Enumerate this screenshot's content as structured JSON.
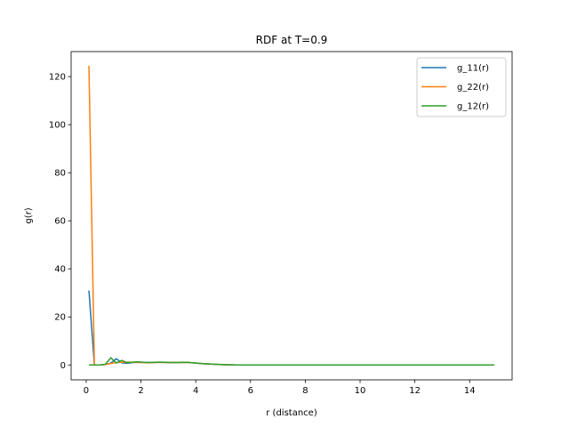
{
  "chart_data": {
    "type": "line",
    "title": "RDF at T=0.9",
    "xlabel": "r (distance)",
    "ylabel": "g(r)",
    "xlim": [
      -0.55,
      15.55
    ],
    "ylim": [
      -6.2,
      130.4
    ],
    "xticks": [
      0,
      2,
      4,
      6,
      8,
      10,
      12,
      14
    ],
    "yticks": [
      0,
      20,
      40,
      60,
      80,
      100,
      120
    ],
    "legend_position": "top-right",
    "grid": false,
    "series": [
      {
        "name": "g_11(r)",
        "color": "#1f77b4",
        "x": [
          0.1,
          0.3,
          0.5,
          0.7,
          0.9,
          1.1,
          1.3,
          1.5,
          1.7,
          1.9,
          2.1,
          2.3,
          2.5,
          2.7,
          2.9,
          3.1,
          3.3,
          3.5,
          3.7,
          3.9,
          4.1,
          4.3,
          4.5,
          4.7,
          4.9,
          5.1,
          5.3,
          5.5,
          5.7,
          5.9,
          6.1,
          6.3,
          6.5,
          6.7,
          6.9,
          7.1,
          7.3,
          7.5,
          7.7,
          7.9,
          8.1,
          8.3,
          8.5,
          8.7,
          8.9,
          9.1,
          9.3,
          9.5,
          9.7,
          9.9,
          10.1,
          10.3,
          10.5,
          10.7,
          10.9,
          11.1,
          11.3,
          11.5,
          11.7,
          11.9,
          12.1,
          12.3,
          12.5,
          12.7,
          12.9,
          13.1,
          13.3,
          13.5,
          13.7,
          13.9,
          14.1,
          14.3,
          14.5,
          14.7,
          14.9
        ],
        "values": [
          31.0,
          0.0,
          0.0,
          0.2,
          0.8,
          2.6,
          0.9,
          0.7,
          1.0,
          1.1,
          1.0,
          1.0,
          1.0,
          1.1,
          1.0,
          1.0,
          1.0,
          1.0,
          1.0,
          0.9,
          0.7,
          0.5,
          0.4,
          0.3,
          0.2,
          0.1,
          0.05,
          0.0,
          0.0,
          0.0,
          0.0,
          0.0,
          0.0,
          0.0,
          0.0,
          0.0,
          0.0,
          0.0,
          0.0,
          0.0,
          0.0,
          0.0,
          0.0,
          0.0,
          0.0,
          0.0,
          0.0,
          0.0,
          0.0,
          0.0,
          0.0,
          0.0,
          0.0,
          0.0,
          0.0,
          0.0,
          0.0,
          0.0,
          0.0,
          0.0,
          0.0,
          0.0,
          0.0,
          0.0,
          0.0,
          0.0,
          0.0,
          0.0,
          0.0,
          0.0,
          0.0,
          0.0,
          0.0,
          0.0,
          0.0
        ]
      },
      {
        "name": "g_22(r)",
        "color": "#ff7f0e",
        "x": [
          0.1,
          0.3,
          0.5,
          0.7,
          0.9,
          1.1,
          1.3,
          1.5,
          1.7,
          1.9,
          2.1,
          2.3,
          2.5,
          2.7,
          2.9,
          3.1,
          3.3,
          3.5,
          3.7,
          3.9,
          4.1,
          4.3,
          4.5,
          4.7,
          4.9,
          5.1,
          5.3,
          5.5,
          5.7,
          5.9,
          6.1,
          6.3,
          6.5,
          6.7,
          6.9,
          7.1,
          7.3,
          7.5,
          7.7,
          7.9,
          8.1,
          8.3,
          8.5,
          8.7,
          8.9,
          9.1,
          9.3,
          9.5,
          9.7,
          9.9,
          10.1,
          10.3,
          10.5,
          10.7,
          10.9,
          11.1,
          11.3,
          11.5,
          11.7,
          11.9,
          12.1,
          12.3,
          12.5,
          12.7,
          12.9,
          13.1,
          13.3,
          13.5,
          13.7,
          13.9,
          14.1,
          14.3,
          14.5,
          14.7,
          14.9
        ],
        "values": [
          124.5,
          0.0,
          0.0,
          0.2,
          0.6,
          1.0,
          1.1,
          1.2,
          1.1,
          1.0,
          1.0,
          0.9,
          1.0,
          1.1,
          1.0,
          1.0,
          1.0,
          1.0,
          1.0,
          0.9,
          0.7,
          0.5,
          0.4,
          0.3,
          0.2,
          0.1,
          0.05,
          0.0,
          0.0,
          0.0,
          0.0,
          0.0,
          0.0,
          0.0,
          0.0,
          0.0,
          0.0,
          0.0,
          0.0,
          0.0,
          0.0,
          0.0,
          0.0,
          0.0,
          0.0,
          0.0,
          0.0,
          0.0,
          0.0,
          0.0,
          0.0,
          0.0,
          0.0,
          0.0,
          0.0,
          0.0,
          0.0,
          0.0,
          0.0,
          0.0,
          0.0,
          0.0,
          0.0,
          0.0,
          0.0,
          0.0,
          0.0,
          0.0,
          0.0,
          0.0,
          0.0,
          0.0,
          0.0,
          0.0,
          0.0
        ]
      },
      {
        "name": "g_12(r)",
        "color": "#2ca02c",
        "x": [
          0.1,
          0.3,
          0.5,
          0.7,
          0.9,
          1.1,
          1.3,
          1.5,
          1.7,
          1.9,
          2.1,
          2.3,
          2.5,
          2.7,
          2.9,
          3.1,
          3.3,
          3.5,
          3.7,
          3.9,
          4.1,
          4.3,
          4.5,
          4.7,
          4.9,
          5.1,
          5.3,
          5.5,
          5.7,
          5.9,
          6.1,
          6.3,
          6.5,
          6.7,
          6.9,
          7.1,
          7.3,
          7.5,
          7.7,
          7.9,
          8.1,
          8.3,
          8.5,
          8.7,
          8.9,
          9.1,
          9.3,
          9.5,
          9.7,
          9.9,
          10.1,
          10.3,
          10.5,
          10.7,
          10.9,
          11.1,
          11.3,
          11.5,
          11.7,
          11.9,
          12.1,
          12.3,
          12.5,
          12.7,
          12.9,
          13.1,
          13.3,
          13.5,
          13.7,
          13.9,
          14.1,
          14.3,
          14.5,
          14.7,
          14.9
        ],
        "values": [
          0.0,
          0.0,
          0.0,
          0.3,
          3.0,
          0.8,
          1.9,
          0.9,
          1.2,
          1.3,
          1.1,
          1.0,
          1.1,
          1.2,
          1.1,
          1.0,
          1.0,
          1.1,
          1.1,
          0.9,
          0.7,
          0.5,
          0.4,
          0.3,
          0.2,
          0.1,
          0.05,
          0.0,
          0.0,
          0.0,
          0.0,
          0.0,
          0.0,
          0.0,
          0.0,
          0.0,
          0.0,
          0.0,
          0.0,
          0.0,
          0.0,
          0.0,
          0.0,
          0.0,
          0.0,
          0.0,
          0.0,
          0.0,
          0.0,
          0.0,
          0.0,
          0.0,
          0.0,
          0.0,
          0.0,
          0.0,
          0.0,
          0.0,
          0.0,
          0.0,
          0.0,
          0.0,
          0.0,
          0.0,
          0.0,
          0.0,
          0.0,
          0.0,
          0.0,
          0.0,
          0.0,
          0.0,
          0.0,
          0.0,
          0.0
        ]
      }
    ]
  }
}
